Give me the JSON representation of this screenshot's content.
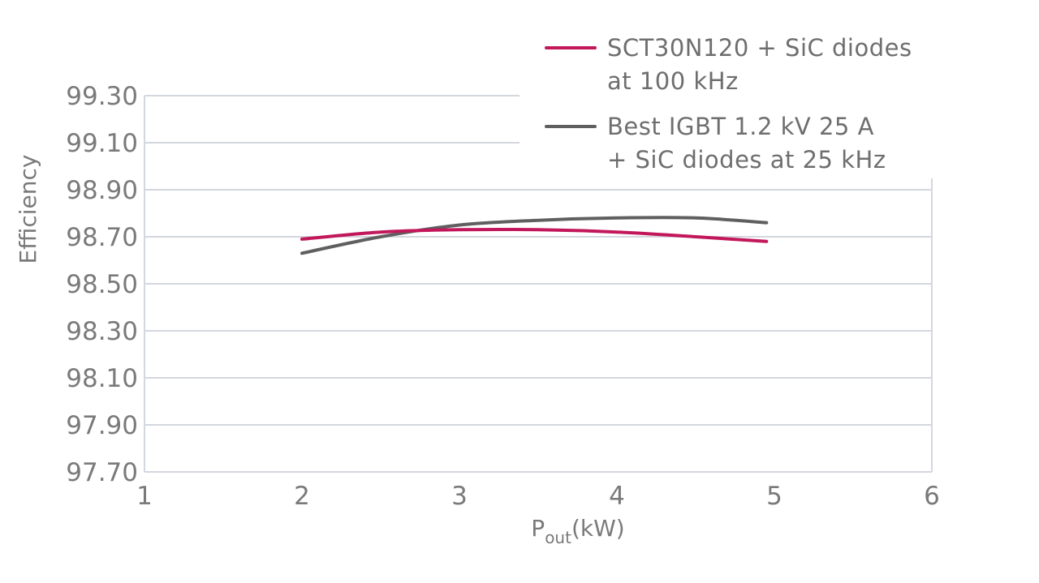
{
  "chart_data": {
    "type": "line",
    "xlabel": "P",
    "xlabel_sub": "out",
    "xlabel_unit": "(kW)",
    "ylabel": "Efficiency",
    "xlim": [
      1,
      6
    ],
    "ylim": [
      97.7,
      99.3
    ],
    "x_ticks": [
      "1",
      "2",
      "3",
      "4",
      "5",
      "6"
    ],
    "y_ticks": [
      "97.70",
      "97.90",
      "98.10",
      "98.30",
      "98.50",
      "98.70",
      "98.90",
      "99.10",
      "99.30"
    ],
    "grid": true,
    "legend_position": "top-right",
    "series": [
      {
        "name_lines": [
          "SCT30N120 + SiC diodes",
          "at 100 kHz"
        ],
        "color": "#c2185b",
        "x": [
          2,
          2.5,
          3,
          3.5,
          4,
          4.5,
          4.95
        ],
        "y": [
          98.69,
          98.72,
          98.73,
          98.73,
          98.72,
          98.7,
          98.68
        ]
      },
      {
        "name_lines": [
          "Best IGBT 1.2 kV 25 A",
          "+ SiC diodes at 25 kHz"
        ],
        "color": "#5f5f5f",
        "x": [
          2,
          2.5,
          3,
          3.5,
          4,
          4.5,
          4.95
        ],
        "y": [
          98.63,
          98.7,
          98.75,
          98.77,
          98.78,
          98.78,
          98.76
        ]
      }
    ]
  }
}
